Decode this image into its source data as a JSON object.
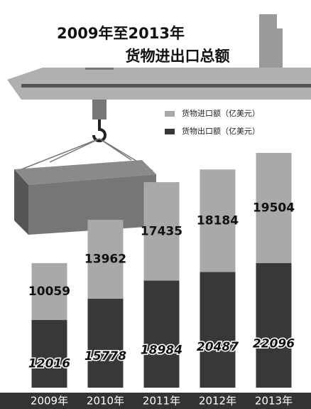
{
  "chart_data": {
    "type": "stacked-bar",
    "title": "2009年至2013年",
    "subtitle": "货物进出口总额",
    "categories": [
      "2009年",
      "2010年",
      "2011年",
      "2012年",
      "2013年"
    ],
    "series": [
      {
        "name": "货物出口额（亿美元）",
        "color": "#383838",
        "values": [
          12016,
          15778,
          18984,
          20487,
          22096
        ]
      },
      {
        "name": "货物进口额（亿美元）",
        "color": "#a9a9a9",
        "values": [
          10059,
          13962,
          17435,
          18184,
          19504
        ]
      }
    ]
  }
}
